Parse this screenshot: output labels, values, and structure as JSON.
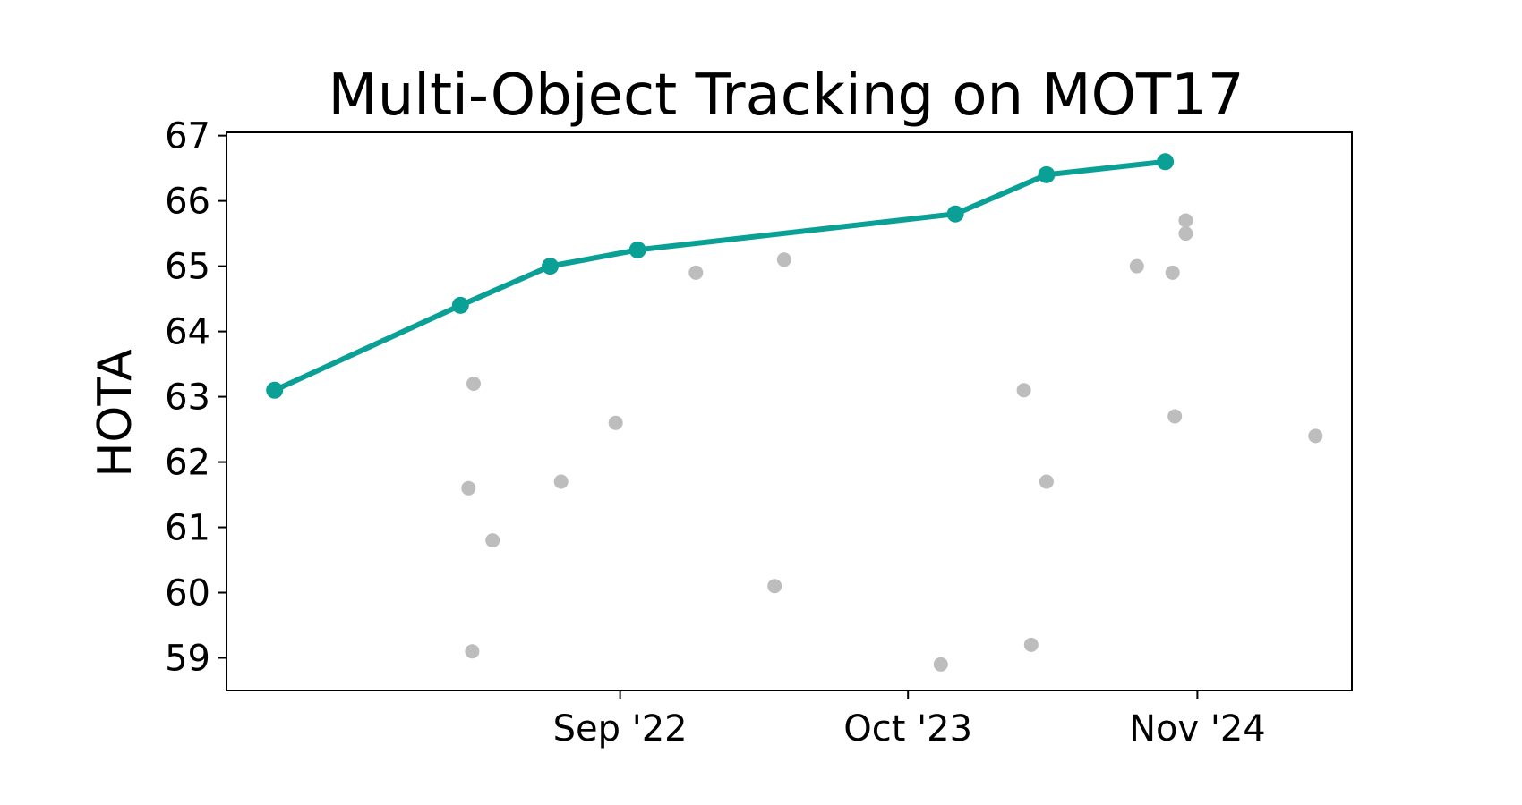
{
  "chart_data": {
    "type": "scatter",
    "title": "Multi-Object Tracking on MOT17",
    "xlabel": "",
    "ylabel": "HOTA",
    "x_ticks": [
      {
        "label": "Sep '22",
        "date": "2022-09-01"
      },
      {
        "label": "Oct '23",
        "date": "2023-10-01"
      },
      {
        "label": "Nov '24",
        "date": "2024-11-01"
      }
    ],
    "y_ticks": [
      59,
      60,
      61,
      62,
      63,
      64,
      65,
      66,
      67
    ],
    "xlim": [
      "2021-03-10",
      "2025-06-01"
    ],
    "ylim": [
      58.5,
      67.05
    ],
    "grid": false,
    "legend": "none",
    "colors": {
      "frontier": "#0aa096",
      "others": "#bdbdbd"
    },
    "series": [
      {
        "role": "frontier",
        "x": [
          "2021-05-15",
          "2022-01-25",
          "2022-05-28",
          "2022-09-25",
          "2023-12-05",
          "2024-04-08",
          "2024-09-18"
        ],
        "y": [
          63.1,
          64.4,
          65.0,
          65.25,
          65.8,
          66.4,
          66.6
        ]
      },
      {
        "role": "others",
        "x": [
          "2022-02-05",
          "2022-02-10",
          "2022-02-12",
          "2022-03-10",
          "2022-06-12",
          "2022-08-26",
          "2022-12-14",
          "2023-04-01",
          "2023-04-14",
          "2023-11-15",
          "2024-03-08",
          "2024-03-18",
          "2024-04-08",
          "2024-08-10",
          "2024-09-28",
          "2024-10-01",
          "2024-10-16",
          "2024-10-16",
          "2025-04-12"
        ],
        "y": [
          61.6,
          59.1,
          63.2,
          60.8,
          61.7,
          62.6,
          64.9,
          60.1,
          65.1,
          58.9,
          63.1,
          59.2,
          61.7,
          65.0,
          64.9,
          62.7,
          65.7,
          65.5,
          62.4
        ]
      }
    ]
  }
}
